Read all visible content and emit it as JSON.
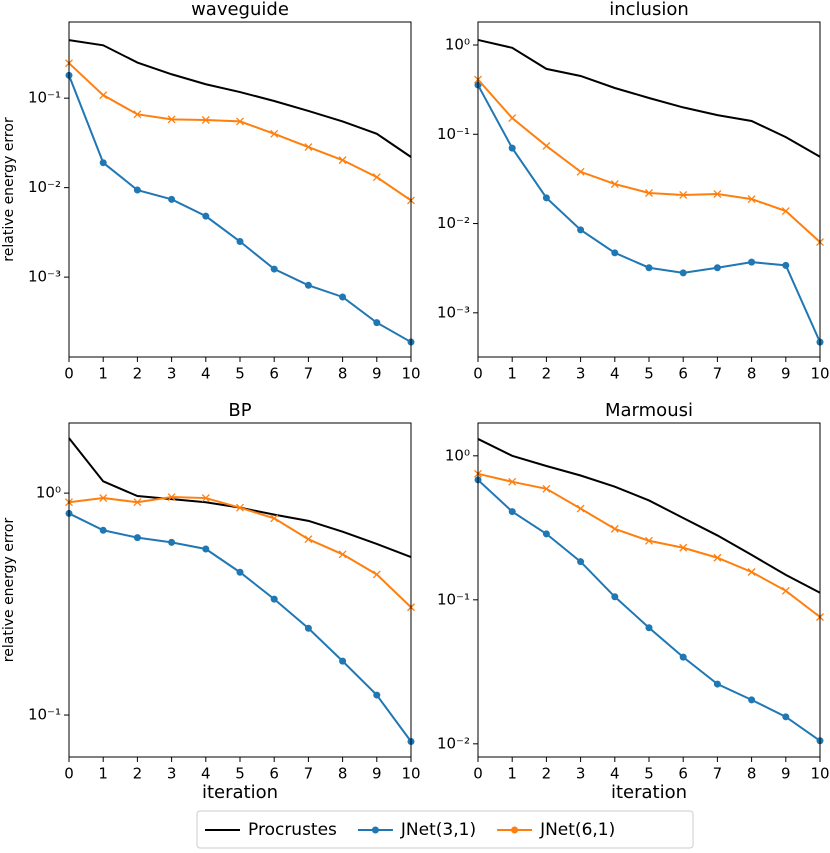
{
  "chart_data": [
    {
      "type": "line",
      "title": "waveguide",
      "ylabel": "relative energy error",
      "log_scale": true,
      "x": [
        0,
        1,
        2,
        3,
        4,
        5,
        6,
        7,
        8,
        9,
        10
      ],
      "xlim": [
        0,
        10
      ],
      "xticks": [
        0,
        1,
        2,
        3,
        4,
        5,
        6,
        7,
        8,
        9,
        10
      ],
      "ylim": [
        0.000128,
        0.71
      ],
      "yticks": [
        {
          "value": 0.001,
          "label": "10⁻³"
        },
        {
          "value": 0.01,
          "label": "10⁻²"
        },
        {
          "value": 0.1,
          "label": "10⁻¹"
        }
      ],
      "series": [
        {
          "name": "Procrustes",
          "color": "#000000",
          "marker": "none",
          "values": [
            0.445,
            0.39,
            0.25,
            0.185,
            0.143,
            0.117,
            0.093,
            0.072,
            0.055,
            0.04,
            0.022
          ]
        },
        {
          "name": "JNet(3,1)",
          "color": "#1f77b4",
          "marker": "o",
          "values": [
            0.18,
            0.019,
            0.0094,
            0.0074,
            0.0048,
            0.0025,
            0.00123,
            0.00081,
            0.0006,
            0.00031,
            0.000188
          ]
        },
        {
          "name": "JNet(6,1)",
          "color": "#ff7f0e",
          "marker": "x",
          "values": [
            0.246,
            0.108,
            0.066,
            0.058,
            0.057,
            0.055,
            0.04,
            0.0284,
            0.0203,
            0.0131,
            0.0072
          ]
        }
      ]
    },
    {
      "type": "line",
      "title": "inclusion",
      "log_scale": true,
      "x": [
        0,
        1,
        2,
        3,
        4,
        5,
        6,
        7,
        8,
        9,
        10
      ],
      "xlim": [
        0,
        10
      ],
      "xticks": [
        0,
        1,
        2,
        3,
        4,
        5,
        6,
        7,
        8,
        9,
        10
      ],
      "ylim": [
        0.00032,
        1.81
      ],
      "yticks": [
        {
          "value": 0.001,
          "label": "10⁻³"
        },
        {
          "value": 0.01,
          "label": "10⁻²"
        },
        {
          "value": 0.1,
          "label": "10⁻¹"
        },
        {
          "value": 1,
          "label": "10⁰"
        }
      ],
      "series": [
        {
          "color": "#000000",
          "marker": "none",
          "values": [
            1.14,
            0.93,
            0.54,
            0.45,
            0.33,
            0.255,
            0.2,
            0.164,
            0.141,
            0.093,
            0.056
          ]
        },
        {
          "color": "#1f77b4",
          "marker": "o",
          "values": [
            0.356,
            0.07,
            0.0194,
            0.0085,
            0.0047,
            0.0032,
            0.0028,
            0.0032,
            0.0037,
            0.0034,
            0.00047
          ]
        },
        {
          "color": "#ff7f0e",
          "marker": "x",
          "values": [
            0.41,
            0.152,
            0.074,
            0.038,
            0.0277,
            0.022,
            0.0209,
            0.0214,
            0.0188,
            0.0138,
            0.0062
          ]
        }
      ]
    },
    {
      "type": "line",
      "title": "BP",
      "xlabel": "iteration",
      "ylabel": "relative energy error",
      "log_scale": true,
      "x": [
        0,
        1,
        2,
        3,
        4,
        5,
        6,
        7,
        8,
        9,
        10
      ],
      "xlim": [
        0,
        10
      ],
      "xticks": [
        0,
        1,
        2,
        3,
        4,
        5,
        6,
        7,
        8,
        9,
        10
      ],
      "ylim": [
        0.0647,
        2.07
      ],
      "yticks": [
        {
          "value": 0.1,
          "label": "10⁻¹"
        },
        {
          "value": 1,
          "label": "10⁰"
        }
      ],
      "series": [
        {
          "color": "#000000",
          "marker": "none",
          "values": [
            1.77,
            1.13,
            0.97,
            0.94,
            0.91,
            0.86,
            0.8,
            0.75,
            0.67,
            0.59,
            0.515
          ]
        },
        {
          "color": "#1f77b4",
          "marker": "o",
          "values": [
            0.81,
            0.68,
            0.63,
            0.6,
            0.56,
            0.44,
            0.333,
            0.246,
            0.175,
            0.123,
            0.076
          ]
        },
        {
          "color": "#ff7f0e",
          "marker": "x",
          "values": [
            0.91,
            0.95,
            0.91,
            0.96,
            0.95,
            0.86,
            0.77,
            0.62,
            0.53,
            0.43,
            0.306
          ]
        }
      ]
    },
    {
      "type": "line",
      "title": "Marmousi",
      "xlabel": "iteration",
      "log_scale": true,
      "x": [
        0,
        1,
        2,
        3,
        4,
        5,
        6,
        7,
        8,
        9,
        10
      ],
      "xlim": [
        0,
        10
      ],
      "xticks": [
        0,
        1,
        2,
        3,
        4,
        5,
        6,
        7,
        8,
        9,
        10
      ],
      "ylim": [
        0.0081,
        1.69
      ],
      "yticks": [
        {
          "value": 0.01,
          "label": "10⁻²"
        },
        {
          "value": 0.1,
          "label": "10⁻¹"
        },
        {
          "value": 1,
          "label": "10⁰"
        }
      ],
      "series": [
        {
          "color": "#000000",
          "marker": "none",
          "values": [
            1.31,
            1.0,
            0.85,
            0.73,
            0.61,
            0.49,
            0.37,
            0.28,
            0.205,
            0.149,
            0.112
          ]
        },
        {
          "color": "#1f77b4",
          "marker": "o",
          "values": [
            0.68,
            0.41,
            0.287,
            0.184,
            0.105,
            0.064,
            0.04,
            0.026,
            0.0202,
            0.0154,
            0.0105
          ]
        },
        {
          "color": "#ff7f0e",
          "marker": "x",
          "values": [
            0.75,
            0.66,
            0.59,
            0.43,
            0.311,
            0.257,
            0.23,
            0.196,
            0.156,
            0.1155,
            0.076
          ]
        }
      ]
    }
  ]
}
